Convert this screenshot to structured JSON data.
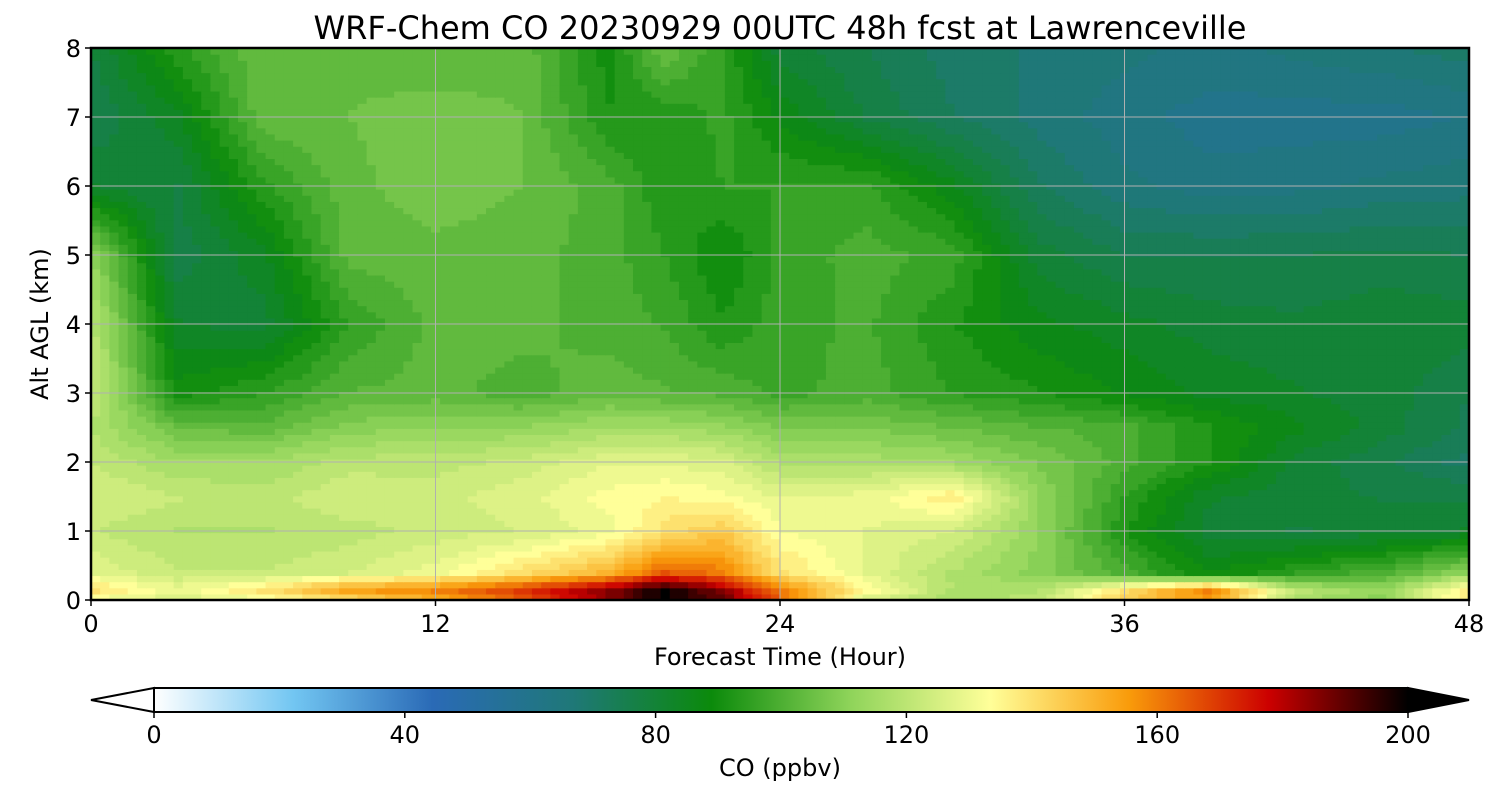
{
  "chart_data": {
    "type": "heatmap",
    "title": "WRF-Chem CO  20230929 00UTC 48h fcst at Lawrenceville",
    "xlabel": "Forecast Time (Hour)",
    "ylabel": "Alt AGL (km)",
    "xlim": [
      0,
      48
    ],
    "ylim": [
      0,
      8
    ],
    "x_ticks": [
      "0",
      "12",
      "24",
      "36",
      "48"
    ],
    "y_ticks": [
      "0",
      "1",
      "2",
      "3",
      "4",
      "5",
      "6",
      "7",
      "8"
    ],
    "grid": true,
    "colorbar": {
      "label": "CO  (ppbv)",
      "range": [
        0,
        200
      ],
      "ticks": [
        "0",
        "40",
        "80",
        "120",
        "160",
        "200"
      ],
      "extend": "both",
      "colors": [
        "#ffffff",
        "#72c6f2",
        "#2a6ab6",
        "#1f7878",
        "#0b8a0b",
        "#8fd45a",
        "#ffff99",
        "#f99b0a",
        "#cc0000",
        "#000000"
      ]
    },
    "x": [
      0,
      3,
      6,
      9,
      12,
      15,
      18,
      20,
      22,
      24,
      27,
      30,
      33,
      36,
      39,
      42,
      45,
      48
    ],
    "y": [
      0,
      0.15,
      0.4,
      1,
      1.5,
      2,
      2.5,
      3,
      4,
      5,
      6,
      7,
      8
    ],
    "values": [
      [
        130,
        125,
        130,
        140,
        150,
        165,
        185,
        200,
        190,
        165,
        125,
        115,
        120,
        145,
        155,
        115,
        110,
        140
      ],
      [
        140,
        130,
        140,
        155,
        160,
        170,
        185,
        200,
        185,
        160,
        135,
        118,
        118,
        140,
        160,
        120,
        112,
        138
      ],
      [
        128,
        122,
        122,
        125,
        130,
        140,
        150,
        165,
        160,
        140,
        128,
        118,
        110,
        100,
        88,
        95,
        100,
        112
      ],
      [
        122,
        118,
        118,
        120,
        123,
        125,
        130,
        140,
        145,
        132,
        128,
        125,
        112,
        92,
        80,
        78,
        80,
        82
      ],
      [
        125,
        122,
        120,
        125,
        124,
        127,
        133,
        135,
        133,
        128,
        130,
        138,
        112,
        95,
        82,
        80,
        78,
        78
      ],
      [
        122,
        115,
        115,
        120,
        120,
        123,
        128,
        128,
        126,
        118,
        117,
        115,
        108,
        100,
        92,
        80,
        76,
        70
      ],
      [
        118,
        105,
        103,
        110,
        112,
        112,
        115,
        115,
        113,
        108,
        108,
        105,
        102,
        100,
        92,
        86,
        80,
        74
      ],
      [
        122,
        90,
        95,
        102,
        103,
        100,
        104,
        102,
        101,
        97,
        100,
        95,
        92,
        88,
        84,
        82,
        80,
        75
      ],
      [
        120,
        82,
        80,
        95,
        103,
        103,
        100,
        98,
        92,
        97,
        99,
        92,
        86,
        83,
        80,
        79,
        81,
        80
      ],
      [
        112,
        76,
        84,
        103,
        104,
        103,
        100,
        95,
        88,
        96,
        100,
        97,
        80,
        75,
        75,
        75,
        76,
        75
      ],
      [
        82,
        78,
        94,
        104,
        107,
        105,
        100,
        92,
        95,
        95,
        96,
        86,
        72,
        66,
        63,
        64,
        66,
        67
      ],
      [
        75,
        84,
        104,
        105,
        107,
        105,
        92,
        92,
        96,
        88,
        78,
        72,
        67,
        63,
        60,
        60,
        60,
        62
      ],
      [
        78,
        94,
        105,
        104,
        102,
        104,
        90,
        105,
        95,
        80,
        75,
        70,
        68,
        66,
        64,
        66,
        68,
        70
      ]
    ]
  }
}
